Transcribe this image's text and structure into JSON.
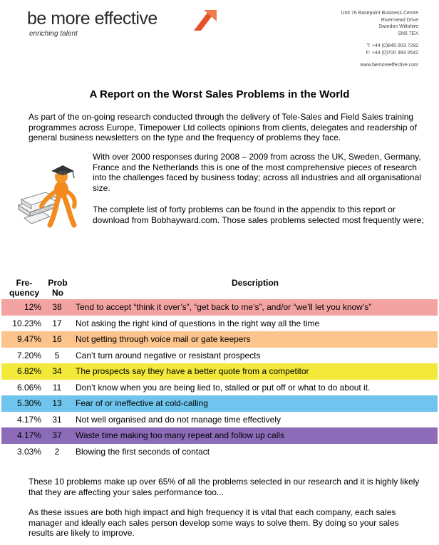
{
  "header": {
    "logo_text": "be more effective",
    "logo_tagline": "enriching talent",
    "address_lines": [
      "Unit 76 Basepoint Business Centre",
      "Rivermead Drive",
      "Swindon Wiltshire",
      "SN5 7EX"
    ],
    "phone": "T:  +44 (0)845 003 7282",
    "fax": "F:  +44 (0)700 393 2642",
    "website": "www.bemoreeffective.com",
    "brand_color": "#e8502a"
  },
  "title": "A Report on the Worst Sales Problems in the World",
  "intro": "As part of the on-going research conducted through the delivery of Tele-Sales and Field Sales training programmes across Europe, Timepower Ltd collects opinions from clients, delegates and readership of general business newsletters on the type and the frequency of problems they face.",
  "para2": "With over 2000 responses during 2008 – 2009 from across the UK, Sweden, Germany, France and the Netherlands this is one of the most comprehensive pieces of research into the challenges faced by business today; across all industries and all organisational size.",
  "para3": "The complete list of forty problems can be found in the appendix to this report or download from Bobhayward.com. Those sales problems selected most frequently were;",
  "table": {
    "headers": {
      "frequency": "Fre- quency",
      "prob_no": "Prob No",
      "description": "Description"
    },
    "rows": [
      {
        "freq": "12%",
        "no": "38",
        "desc": "Tend to accept “think it over’s”, “get back to me’s”, and/or “we’ll let you know’s”",
        "color": "#f4a3a3"
      },
      {
        "freq": "10.23%",
        "no": "17",
        "desc": "Not asking the right kind of questions in the right way all the time",
        "color": "#ffffff"
      },
      {
        "freq": "9.47%",
        "no": "16",
        "desc": "Not getting through voice mail or gate keepers",
        "color": "#fbc48d"
      },
      {
        "freq": "7.20%",
        "no": "5",
        "desc": "Can’t turn around negative or resistant prospects",
        "color": "#ffffff"
      },
      {
        "freq": "6.82%",
        "no": "34",
        "desc": "The prospects say they have a better quote from a competitor",
        "color": "#f2e93a"
      },
      {
        "freq": "6.06%",
        "no": "11",
        "desc": "Don’t know when you are being lied to, stalled or put off or what to do about it.",
        "color": "#ffffff"
      },
      {
        "freq": "5.30%",
        "no": "13",
        "desc": "Fear of or ineffective at cold-calling",
        "color": "#6fc5ee"
      },
      {
        "freq": "4.17%",
        "no": "31",
        "desc": "Not well organised and do not manage time effectively",
        "color": "#ffffff"
      },
      {
        "freq": "4.17%",
        "no": "37",
        "desc": "Waste time making too many repeat and follow up calls",
        "color": "#8c6cb9"
      },
      {
        "freq": "3.03%",
        "no": "2",
        "desc": "Blowing the first seconds of contact",
        "color": "#ffffff"
      }
    ]
  },
  "para4": "These 10 problems make up over 65% of all the problems selected in our research and it is highly likely that they are affecting your sales performance too...",
  "para5": "As these issues are both high impact and high frequency it is vital that each company, each sales manager and ideally each sales person develop some ways to solve them. By doing so your sales results are likely to improve."
}
